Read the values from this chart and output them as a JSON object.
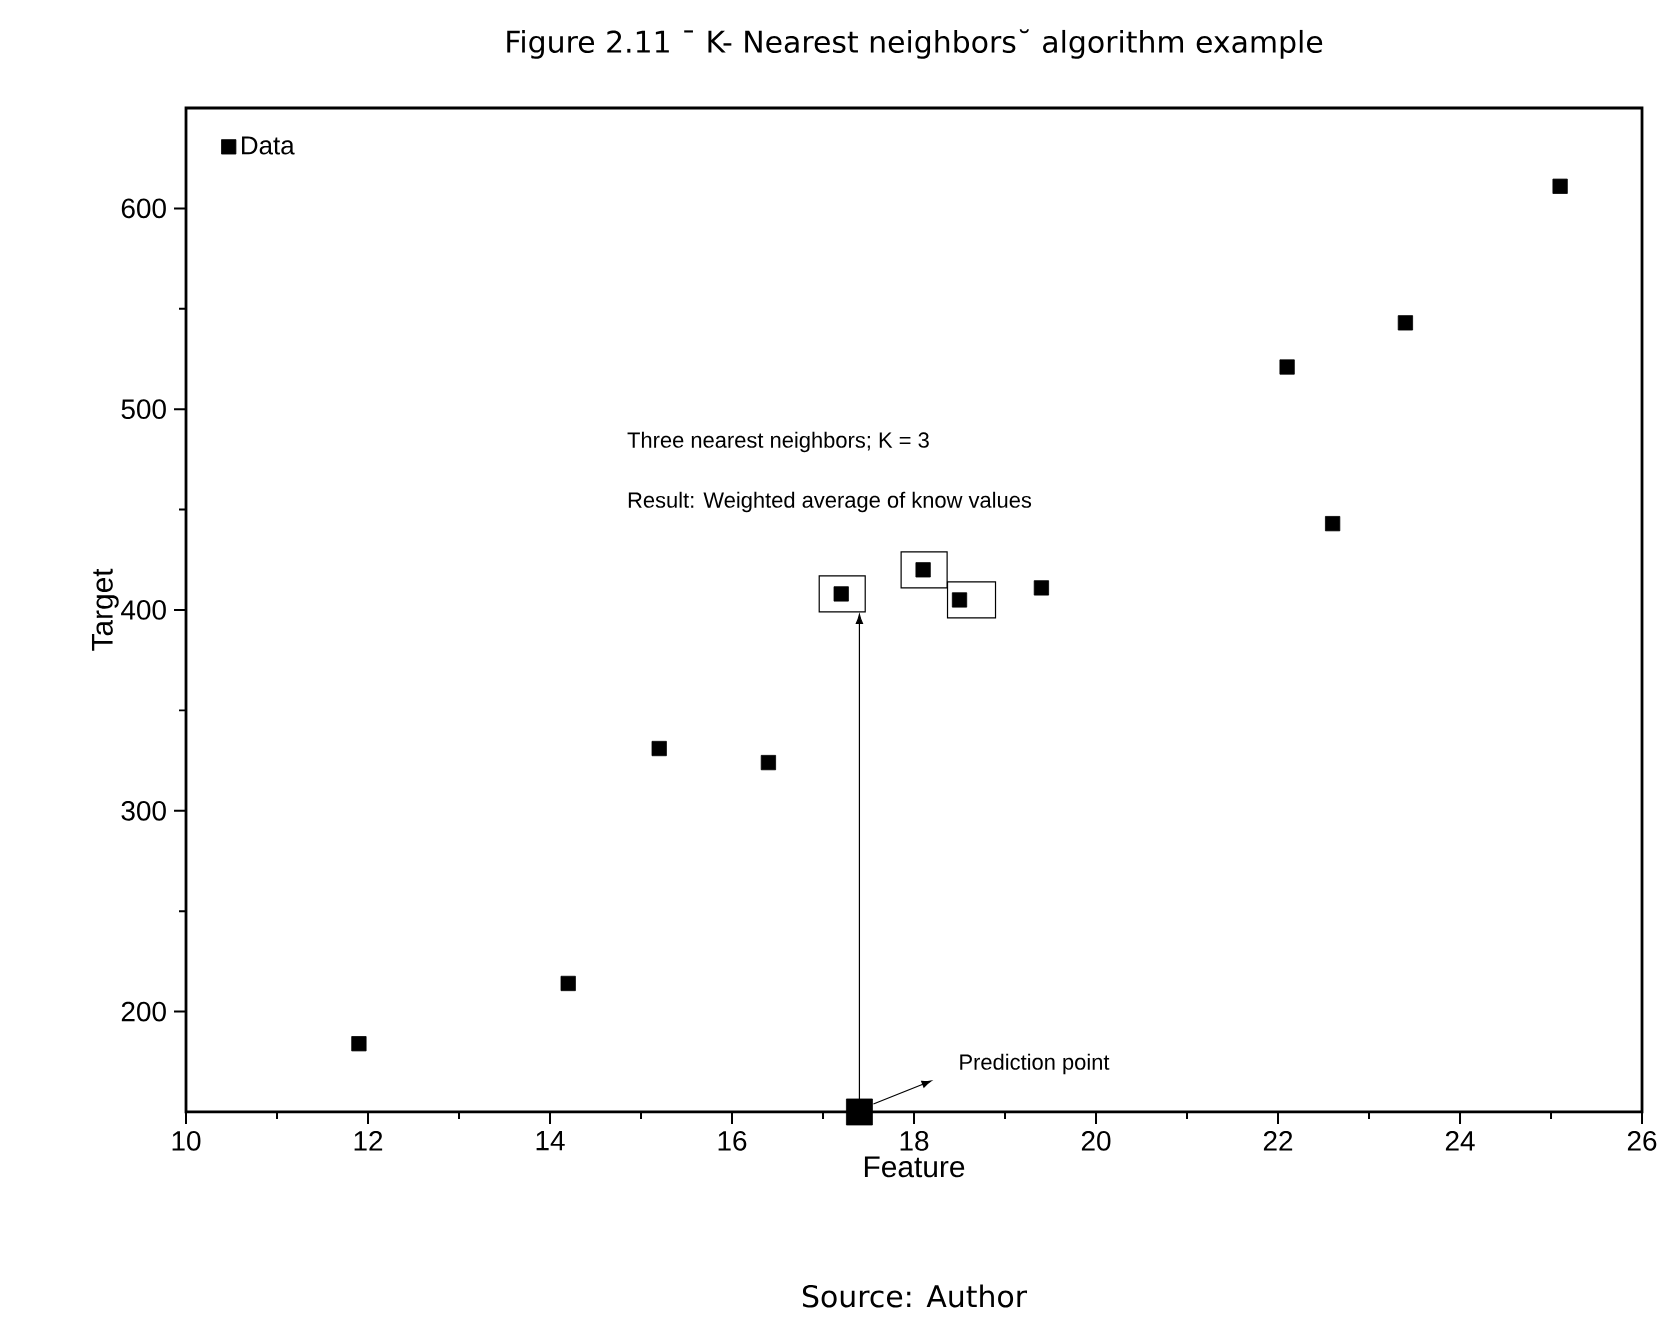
{
  "chart_data": {
    "type": "scatter",
    "title": "Figure 2.11 ¯ K- Nearest neighbors˘ algorithm example",
    "xlabel": "Feature",
    "ylabel": "Target",
    "series": [
      {
        "name": "Data",
        "color": "#000000",
        "x": [
          11.9,
          14.2,
          15.2,
          16.4,
          17.2,
          18.1,
          18.5,
          19.4,
          22.1,
          22.6,
          23.4,
          25.1
        ],
        "values": [
          184,
          214,
          331,
          324,
          408,
          420,
          405,
          411,
          521,
          443,
          543,
          611
        ]
      },
      {
        "color": "#000000",
        "x": [
          17.4
        ],
        "values": [
          150
        ]
      }
    ],
    "xlim": [
      10,
      26
    ],
    "xticks": [
      10,
      12,
      14,
      16,
      18,
      20,
      22,
      24,
      26
    ],
    "ylim": [
      150,
      650
    ],
    "yticks": [
      200,
      300,
      400,
      500,
      600
    ],
    "marker": "square",
    "legend": "top left",
    "grid": false,
    "annotations": [
      "Three nearest neighbors; K = 3",
      "Result: Weighted average of know values",
      "Prediction point",
      "Source: Author"
    ]
  }
}
